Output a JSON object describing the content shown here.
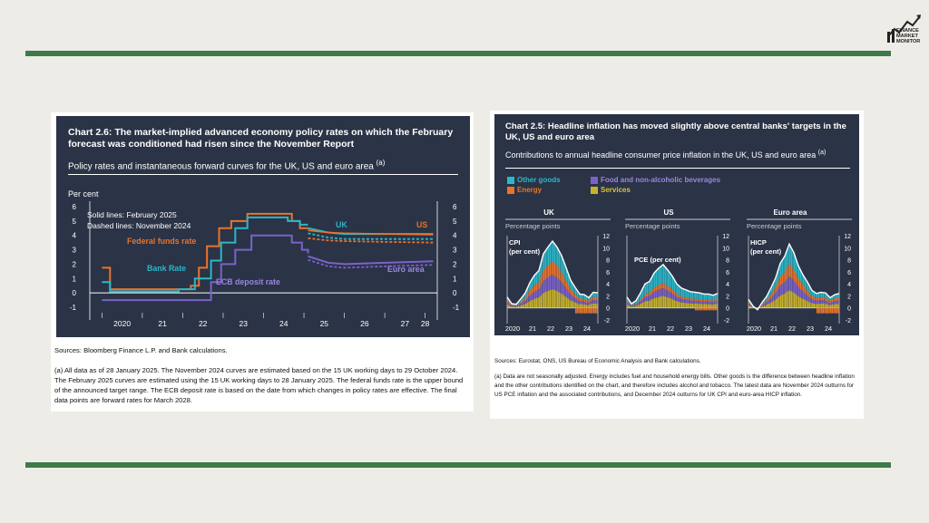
{
  "logo": {
    "lines": [
      "FINANCE",
      "MARKET",
      "MONITOR"
    ]
  },
  "left": {
    "title": "Chart 2.6: The market-implied advanced economy policy rates on which the February forecast was conditioned had risen since the November Report",
    "subtitle": "Policy rates and instantaneous forward curves for the UK, US and euro area",
    "subtitle_note": "(a)",
    "ylabel": "Per cent",
    "note_solid": "Solid lines: February 2025",
    "note_dashed": "Dashed lines: November 2024",
    "labels": {
      "fed": "Federal funds rate",
      "bank": "Bank Rate",
      "ecb": "ECB deposit rate",
      "uk": "UK",
      "us": "US",
      "euro": "Euro area"
    },
    "sources": "Sources: Bloomberg Finance L.P. and Bank calculations.",
    "footnote": "(a) All data as of 28 January 2025. The November 2024 curves are estimated based on the 15 UK working days to 29 October 2024. The February 2025 curves are estimated using the 15 UK working days to 28 January 2025. The federal funds rate is the upper bound of the announced target range. The ECB deposit rate is based on the date from which changes in policy rates are effective. The final data points are forward rates for March 2028."
  },
  "right": {
    "title": "Chart 2.5: Headline inflation has moved slightly above central banks' targets in the UK, US and euro area",
    "subtitle": "Contributions to annual headline consumer price inflation in the UK, US and euro area",
    "subtitle_note": "(a)",
    "legend": [
      {
        "label": "Other goods",
        "color": "#2bb7c9"
      },
      {
        "label": "Food and non-alcoholic beverages",
        "color": "#7b62c9"
      },
      {
        "label": "Energy",
        "color": "#e8742a"
      },
      {
        "label": "Services",
        "color": "#c8b22b"
      }
    ],
    "panels": [
      {
        "name": "UK",
        "unit": "Percentage points",
        "series": "CPI (per cent)"
      },
      {
        "name": "US",
        "unit": "Percentage points",
        "series": "PCE (per cent)"
      },
      {
        "name": "Euro area",
        "unit": "Percentage points",
        "series": "HICP (per cent)"
      }
    ],
    "sources": "Sources: Eurostat, ONS, US Bureau of Economic Analysis and Bank calculations.",
    "footnote": "(a) Data are not seasonally adjusted. Energy includes fuel and household energy bills. Other goods is the difference between headline inflation and the other contributions identified on the chart, and therefore includes alcohol and tobacco. The latest data are November 2024 outturns for US PCE inflation and the associated contributions, and December 2024 outturns for UK CPI and euro-area HICP inflation."
  },
  "chart_data": [
    {
      "type": "line",
      "title": "Chart 2.6: The market-implied advanced economy policy rates on which the February forecast was conditioned had risen since the November Report",
      "ylabel": "Per cent",
      "ylim": [
        -1,
        6
      ],
      "x_ticks": [
        "2020",
        "21",
        "22",
        "23",
        "24",
        "25",
        "26",
        "27",
        "28"
      ],
      "yticks": [
        -1,
        0,
        1,
        2,
        3,
        4,
        5,
        6
      ],
      "series": [
        {
          "name": "Federal funds rate",
          "color": "#e8742a",
          "points": [
            [
              2020,
              1.75
            ],
            [
              2020.2,
              0.25
            ],
            [
              2022.2,
              0.5
            ],
            [
              2022.4,
              1.75
            ],
            [
              2022.6,
              3.25
            ],
            [
              2022.9,
              4.5
            ],
            [
              2023.2,
              5.0
            ],
            [
              2023.6,
              5.5
            ],
            [
              2024.7,
              5.0
            ],
            [
              2024.9,
              4.5
            ],
            [
              2025.1,
              4.5
            ]
          ]
        },
        {
          "name": "Bank Rate",
          "color": "#2bb7c9",
          "points": [
            [
              2020,
              0.75
            ],
            [
              2020.2,
              0.1
            ],
            [
              2021.9,
              0.25
            ],
            [
              2022.3,
              1.0
            ],
            [
              2022.7,
              2.25
            ],
            [
              2022.95,
              3.5
            ],
            [
              2023.3,
              4.5
            ],
            [
              2023.6,
              5.25
            ],
            [
              2024.6,
              5.0
            ],
            [
              2024.9,
              4.75
            ],
            [
              2025.1,
              4.75
            ]
          ]
        },
        {
          "name": "ECB deposit rate",
          "color": "#7b62c9",
          "points": [
            [
              2020,
              -0.5
            ],
            [
              2022.5,
              -0.5
            ],
            [
              2022.7,
              0.75
            ],
            [
              2022.95,
              2.0
            ],
            [
              2023.3,
              3.0
            ],
            [
              2023.7,
              4.0
            ],
            [
              2024.4,
              4.0
            ],
            [
              2024.7,
              3.5
            ],
            [
              2024.95,
              3.0
            ],
            [
              2025.1,
              2.75
            ]
          ]
        },
        {
          "name": "UK",
          "color": "#2bb7c9",
          "points": [
            [
              2025.1,
              4.5
            ],
            [
              2025.6,
              4.2
            ],
            [
              2026,
              4.1
            ],
            [
              2027,
              4.1
            ],
            [
              2028.2,
              4.1
            ]
          ]
        },
        {
          "name": "US",
          "color": "#e8742a",
          "points": [
            [
              2025.1,
              4.35
            ],
            [
              2025.6,
              4.2
            ],
            [
              2026,
              4.15
            ],
            [
              2027,
              4.1
            ],
            [
              2028.2,
              4.05
            ]
          ]
        },
        {
          "name": "Euro area",
          "color": "#7b62c9",
          "points": [
            [
              2025.1,
              2.55
            ],
            [
              2025.6,
              2.1
            ],
            [
              2026,
              2.0
            ],
            [
              2027,
              2.1
            ],
            [
              2028.2,
              2.2
            ]
          ]
        }
      ]
    },
    {
      "type": "bar",
      "title": "Chart 2.5: Headline inflation has moved slightly above central banks' targets in the UK, US and euro area",
      "ylim": [
        -2,
        12
      ],
      "yticks": [
        -2,
        0,
        2,
        4,
        6,
        8,
        10,
        12
      ],
      "x_ticks": [
        "2020",
        "21",
        "22",
        "23",
        "24"
      ],
      "panels": [
        {
          "name": "UK",
          "peak": 11.1,
          "headline": [
            1.8,
            0.7,
            0.6,
            1.5,
            2.5,
            4.2,
            5.4,
            6.2,
            9.0,
            10.1,
            11.1,
            10.1,
            8.7,
            6.7,
            4.6,
            3.4,
            2.3,
            2.2,
            1.7,
            2.6,
            2.5
          ]
        },
        {
          "name": "US",
          "peak": 7.2,
          "headline": [
            1.8,
            0.7,
            1.2,
            2.5,
            4.0,
            4.4,
            5.8,
            6.6,
            7.2,
            6.3,
            5.3,
            4.0,
            3.3,
            3.0,
            2.7,
            2.6,
            2.5,
            2.3,
            2.3,
            2.1,
            2.4
          ]
        },
        {
          "name": "Euro area",
          "peak": 10.6,
          "headline": [
            1.4,
            0.3,
            -0.3,
            0.9,
            1.9,
            3.4,
            5.0,
            7.4,
            8.6,
            10.6,
            9.2,
            7.0,
            5.5,
            4.3,
            2.9,
            2.4,
            2.6,
            2.5,
            1.7,
            2.2,
            2.4
          ]
        }
      ]
    }
  ]
}
